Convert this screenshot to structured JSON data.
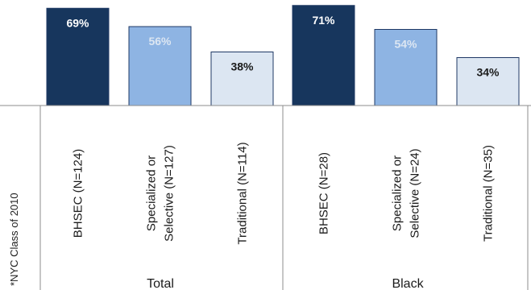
{
  "chart_data": {
    "type": "bar",
    "note": "*NYC Class of 2010",
    "groups": [
      {
        "name": "Total",
        "categories": [
          "BHSEC (N=124)",
          "Specialized or|Selective (N=127)",
          "Traditional (N=114)"
        ],
        "values": [
          69,
          56,
          38
        ],
        "labels": [
          "69%",
          "56%",
          "38%"
        ]
      },
      {
        "name": "Black",
        "categories": [
          "BHSEC (N=28)",
          "Specialized or|Selective (N=24)",
          "Traditional (N=35)"
        ],
        "values": [
          71,
          54,
          34
        ],
        "labels": [
          "71%",
          "54%",
          "34%"
        ]
      }
    ],
    "colors": {
      "BHSEC": "#17365d",
      "Specialized or Selective": "#8eb4e3",
      "Traditional": "#dce6f2",
      "border": "#1f3864"
    },
    "label_colors": [
      "#ffffff",
      "#dce6f2",
      "#1a1a1a"
    ]
  }
}
